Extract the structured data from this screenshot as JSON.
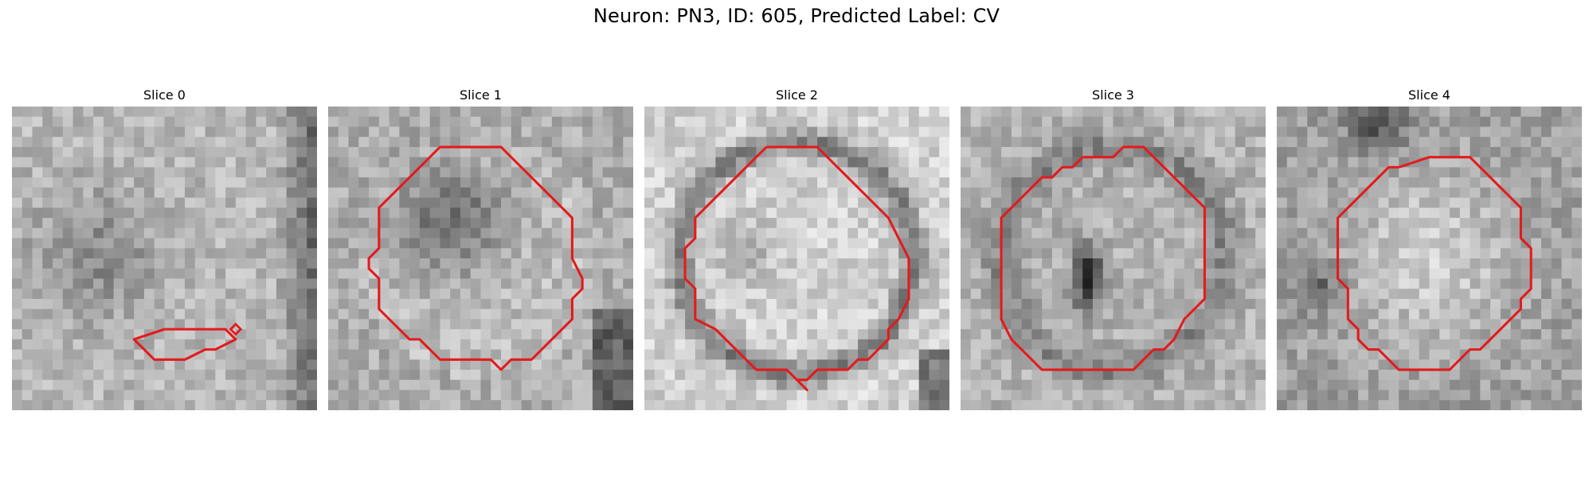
{
  "figure": {
    "title": "Neuron: PN3, ID: 605, Predicted Label: CV"
  },
  "contour_color": "#e41a1c",
  "slices": [
    {
      "title": "Slice 0",
      "texture": "diffuse",
      "seed": 11,
      "contour": [
        [
          15,
          22
        ],
        [
          21,
          22
        ],
        [
          22,
          23
        ],
        [
          20,
          24
        ],
        [
          19,
          24
        ],
        [
          17,
          25
        ],
        [
          16,
          25
        ],
        [
          14,
          25
        ],
        [
          13,
          24
        ],
        [
          12,
          23
        ],
        [
          15,
          22
        ]
      ],
      "marker": [
        22,
        22
      ]
    },
    {
      "title": "Slice 1",
      "texture": "darkblob",
      "seed": 23,
      "contour": [
        [
          11,
          4
        ],
        [
          13,
          4
        ],
        [
          17,
          4
        ],
        [
          18,
          5
        ],
        [
          19,
          6
        ],
        [
          21,
          8
        ],
        [
          22,
          9
        ],
        [
          23,
          10
        ],
        [
          24,
          11
        ],
        [
          24,
          13
        ],
        [
          24,
          15
        ],
        [
          25,
          17
        ],
        [
          25,
          18
        ],
        [
          24,
          19
        ],
        [
          24,
          21
        ],
        [
          23,
          22
        ],
        [
          22,
          23
        ],
        [
          21,
          24
        ],
        [
          20,
          25
        ],
        [
          18,
          25
        ],
        [
          17,
          26
        ],
        [
          16,
          25
        ],
        [
          15,
          25
        ],
        [
          14,
          25
        ],
        [
          13,
          25
        ],
        [
          12,
          25
        ],
        [
          11,
          25
        ],
        [
          10,
          24
        ],
        [
          9,
          23
        ],
        [
          8,
          23
        ],
        [
          7,
          22
        ],
        [
          6,
          21
        ],
        [
          5,
          20
        ],
        [
          5,
          18
        ],
        [
          5,
          17
        ],
        [
          4,
          16
        ],
        [
          4,
          15
        ],
        [
          5,
          14
        ],
        [
          5,
          12
        ],
        [
          5,
          10
        ],
        [
          6,
          9
        ],
        [
          7,
          8
        ],
        [
          8,
          7
        ],
        [
          9,
          6
        ],
        [
          10,
          5
        ],
        [
          11,
          4
        ]
      ]
    },
    {
      "title": "Slice 2",
      "texture": "ring",
      "seed": 37,
      "contour": [
        [
          12,
          4
        ],
        [
          14,
          4
        ],
        [
          16,
          4
        ],
        [
          17,
          4
        ],
        [
          18,
          5
        ],
        [
          19,
          6
        ],
        [
          20,
          7
        ],
        [
          21,
          8
        ],
        [
          22,
          9
        ],
        [
          23,
          10
        ],
        [
          24,
          11
        ],
        [
          25,
          13
        ],
        [
          26,
          15
        ],
        [
          26,
          17
        ],
        [
          26,
          19
        ],
        [
          25,
          21
        ],
        [
          24,
          22
        ],
        [
          24,
          23
        ],
        [
          23,
          24
        ],
        [
          22,
          25
        ],
        [
          21,
          25
        ],
        [
          20,
          26
        ],
        [
          18,
          26
        ],
        [
          17,
          26
        ],
        [
          16,
          27
        ],
        [
          15,
          27
        ],
        [
          16,
          28
        ],
        [
          15,
          27
        ],
        [
          14,
          26
        ],
        [
          11,
          26
        ],
        [
          10,
          25
        ],
        [
          9,
          24
        ],
        [
          8,
          23
        ],
        [
          7,
          22
        ],
        [
          5,
          21
        ],
        [
          5,
          20
        ],
        [
          5,
          18
        ],
        [
          4,
          17
        ],
        [
          4,
          15
        ],
        [
          4,
          14
        ],
        [
          5,
          13
        ],
        [
          5,
          11
        ],
        [
          6,
          10
        ],
        [
          7,
          9
        ],
        [
          8,
          8
        ],
        [
          9,
          7
        ],
        [
          10,
          6
        ],
        [
          11,
          5
        ],
        [
          12,
          4
        ]
      ]
    },
    {
      "title": "Slice 3",
      "texture": "darkspot",
      "seed": 51,
      "contour": [
        [
          12,
          5
        ],
        [
          15,
          5
        ],
        [
          16,
          4
        ],
        [
          18,
          4
        ],
        [
          19,
          5
        ],
        [
          20,
          6
        ],
        [
          21,
          7
        ],
        [
          22,
          8
        ],
        [
          23,
          9
        ],
        [
          24,
          10
        ],
        [
          24,
          12
        ],
        [
          24,
          14
        ],
        [
          24,
          16
        ],
        [
          24,
          18
        ],
        [
          24,
          19
        ],
        [
          23,
          20
        ],
        [
          22,
          21
        ],
        [
          21,
          23
        ],
        [
          20,
          24
        ],
        [
          19,
          24
        ],
        [
          18,
          25
        ],
        [
          17,
          26
        ],
        [
          15,
          26
        ],
        [
          13,
          26
        ],
        [
          12,
          26
        ],
        [
          10,
          26
        ],
        [
          9,
          26
        ],
        [
          8,
          26
        ],
        [
          7,
          25
        ],
        [
          6,
          24
        ],
        [
          5,
          23
        ],
        [
          4,
          21
        ],
        [
          4,
          19
        ],
        [
          4,
          17
        ],
        [
          4,
          15
        ],
        [
          4,
          13
        ],
        [
          4,
          11
        ],
        [
          5,
          10
        ],
        [
          6,
          9
        ],
        [
          7,
          8
        ],
        [
          8,
          7
        ],
        [
          9,
          7
        ],
        [
          10,
          6
        ],
        [
          11,
          6
        ],
        [
          12,
          5
        ]
      ]
    },
    {
      "title": "Slice 4",
      "texture": "lightcircle",
      "seed": 67,
      "contour": [
        [
          12,
          6
        ],
        [
          15,
          5
        ],
        [
          17,
          5
        ],
        [
          19,
          5
        ],
        [
          20,
          6
        ],
        [
          21,
          7
        ],
        [
          22,
          8
        ],
        [
          23,
          9
        ],
        [
          24,
          10
        ],
        [
          24,
          12
        ],
        [
          24,
          13
        ],
        [
          25,
          14
        ],
        [
          25,
          16
        ],
        [
          25,
          18
        ],
        [
          24,
          19
        ],
        [
          24,
          20
        ],
        [
          23,
          21
        ],
        [
          22,
          22
        ],
        [
          21,
          23
        ],
        [
          20,
          24
        ],
        [
          19,
          24
        ],
        [
          18,
          25
        ],
        [
          17,
          26
        ],
        [
          15,
          26
        ],
        [
          14,
          26
        ],
        [
          12,
          26
        ],
        [
          11,
          25
        ],
        [
          10,
          24
        ],
        [
          9,
          24
        ],
        [
          8,
          23
        ],
        [
          8,
          22
        ],
        [
          7,
          21
        ],
        [
          7,
          20
        ],
        [
          7,
          18
        ],
        [
          6,
          17
        ],
        [
          6,
          15
        ],
        [
          6,
          13
        ],
        [
          6,
          11
        ],
        [
          7,
          10
        ],
        [
          8,
          9
        ],
        [
          9,
          8
        ],
        [
          10,
          7
        ],
        [
          11,
          6
        ],
        [
          12,
          6
        ]
      ]
    }
  ]
}
